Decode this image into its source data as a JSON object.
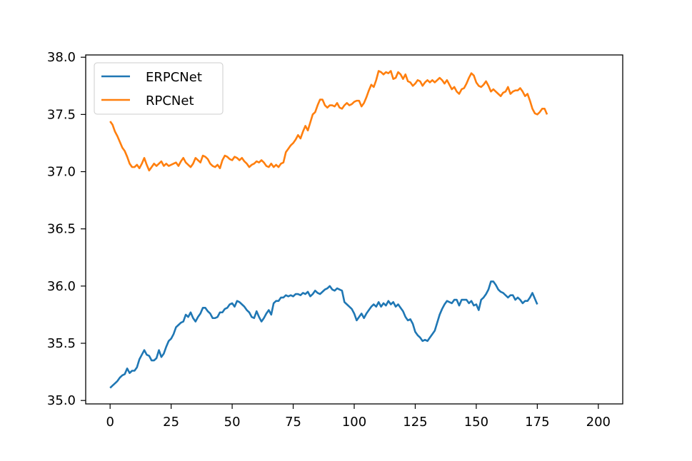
{
  "chart_data": {
    "type": "line",
    "title": "",
    "xlabel": "",
    "ylabel": "",
    "xlim": [
      -10,
      210
    ],
    "ylim": [
      34.97,
      38.02
    ],
    "xticks": [
      0,
      25,
      50,
      75,
      100,
      125,
      150,
      175,
      200
    ],
    "xtick_labels": [
      "0",
      "25",
      "50",
      "75",
      "100",
      "125",
      "150",
      "175",
      "200"
    ],
    "yticks": [
      35.0,
      35.5,
      36.0,
      36.5,
      37.0,
      37.5,
      38.0
    ],
    "ytick_labels": [
      "35.0",
      "35.5",
      "36.0",
      "36.5",
      "37.0",
      "37.5",
      "38.0"
    ],
    "grid": false,
    "legend_position": "top-left",
    "series": [
      {
        "name": "ERPCNet",
        "color": "#1f77b4",
        "x_start": 0,
        "x_step": 1,
        "values": [
          35.11,
          35.13,
          35.15,
          35.17,
          35.2,
          35.22,
          35.23,
          35.28,
          35.24,
          35.26,
          35.26,
          35.29,
          35.36,
          35.4,
          35.44,
          35.4,
          35.39,
          35.35,
          35.35,
          35.37,
          35.44,
          35.38,
          35.41,
          35.47,
          35.52,
          35.54,
          35.58,
          35.64,
          35.66,
          35.68,
          35.69,
          35.75,
          35.73,
          35.77,
          35.72,
          35.69,
          35.73,
          35.76,
          35.81,
          35.81,
          35.78,
          35.76,
          35.72,
          35.72,
          35.73,
          35.77,
          35.77,
          35.8,
          35.81,
          35.84,
          35.85,
          35.82,
          35.87,
          35.86,
          35.84,
          35.82,
          35.79,
          35.77,
          35.73,
          35.72,
          35.78,
          35.73,
          35.69,
          35.72,
          35.76,
          35.79,
          35.75,
          35.85,
          35.87,
          35.87,
          35.9,
          35.9,
          35.92,
          35.91,
          35.92,
          35.91,
          35.93,
          35.93,
          35.92,
          35.94,
          35.93,
          35.95,
          35.91,
          35.93,
          35.96,
          35.94,
          35.93,
          35.95,
          35.97,
          35.98,
          36.0,
          35.97,
          35.96,
          35.98,
          35.97,
          35.96,
          35.86,
          35.84,
          35.82,
          35.8,
          35.76,
          35.7,
          35.73,
          35.76,
          35.72,
          35.76,
          35.79,
          35.82,
          35.84,
          35.82,
          35.86,
          35.82,
          35.85,
          35.83,
          35.87,
          35.84,
          35.86,
          35.82,
          35.84,
          35.81,
          35.78,
          35.73,
          35.7,
          35.71,
          35.67,
          35.6,
          35.57,
          35.55,
          35.52,
          35.53,
          35.52,
          35.55,
          35.58,
          35.61,
          35.68,
          35.75,
          35.8,
          35.84,
          35.87,
          35.86,
          35.85,
          35.88,
          35.88,
          35.83,
          35.88,
          35.88,
          35.88,
          35.85,
          35.87,
          35.83,
          35.84,
          35.79,
          35.88,
          35.9,
          35.93,
          35.97,
          36.04,
          36.04,
          36.01,
          35.97,
          35.95,
          35.94,
          35.92,
          35.9,
          35.92,
          35.92,
          35.88,
          35.9,
          35.88,
          35.85,
          35.87,
          35.87,
          35.9,
          35.94,
          35.89,
          35.84
        ]
      },
      {
        "name": "RPCNet",
        "color": "#ff7f0e",
        "x_start": 0,
        "x_step": 1,
        "values": [
          37.44,
          37.41,
          37.35,
          37.31,
          37.26,
          37.21,
          37.18,
          37.13,
          37.07,
          37.04,
          37.04,
          37.06,
          37.03,
          37.07,
          37.12,
          37.06,
          37.01,
          37.04,
          37.07,
          37.05,
          37.07,
          37.09,
          37.05,
          37.07,
          37.05,
          37.06,
          37.07,
          37.08,
          37.05,
          37.09,
          37.12,
          37.08,
          37.06,
          37.04,
          37.07,
          37.12,
          37.1,
          37.08,
          37.14,
          37.13,
          37.11,
          37.07,
          37.05,
          37.04,
          37.06,
          37.03,
          37.1,
          37.14,
          37.13,
          37.11,
          37.1,
          37.13,
          37.12,
          37.1,
          37.12,
          37.09,
          37.07,
          37.04,
          37.06,
          37.07,
          37.09,
          37.08,
          37.1,
          37.08,
          37.05,
          37.04,
          37.07,
          37.04,
          37.06,
          37.04,
          37.07,
          37.08,
          37.17,
          37.2,
          37.23,
          37.25,
          37.28,
          37.32,
          37.29,
          37.35,
          37.4,
          37.36,
          37.43,
          37.5,
          37.52,
          37.58,
          37.63,
          37.63,
          37.58,
          37.56,
          37.58,
          37.58,
          37.57,
          37.6,
          37.56,
          37.55,
          37.58,
          37.6,
          37.58,
          37.59,
          37.61,
          37.62,
          37.62,
          37.57,
          37.6,
          37.65,
          37.71,
          37.76,
          37.74,
          37.8,
          37.88,
          37.87,
          37.85,
          37.87,
          37.86,
          37.88,
          37.81,
          37.82,
          37.87,
          37.85,
          37.81,
          37.85,
          37.79,
          37.78,
          37.75,
          37.77,
          37.8,
          37.79,
          37.75,
          37.78,
          37.8,
          37.78,
          37.8,
          37.78,
          37.8,
          37.82,
          37.8,
          37.77,
          37.8,
          37.76,
          37.72,
          37.74,
          37.7,
          37.68,
          37.72,
          37.73,
          37.77,
          37.82,
          37.86,
          37.84,
          37.78,
          37.75,
          37.74,
          37.76,
          37.79,
          37.75,
          37.7,
          37.72,
          37.7,
          37.68,
          37.66,
          37.69,
          37.7,
          37.74,
          37.68,
          37.7,
          37.71,
          37.71,
          37.73,
          37.7,
          37.66,
          37.68,
          37.62,
          37.55,
          37.51,
          37.5,
          37.52,
          37.55,
          37.55,
          37.5
        ]
      }
    ]
  }
}
